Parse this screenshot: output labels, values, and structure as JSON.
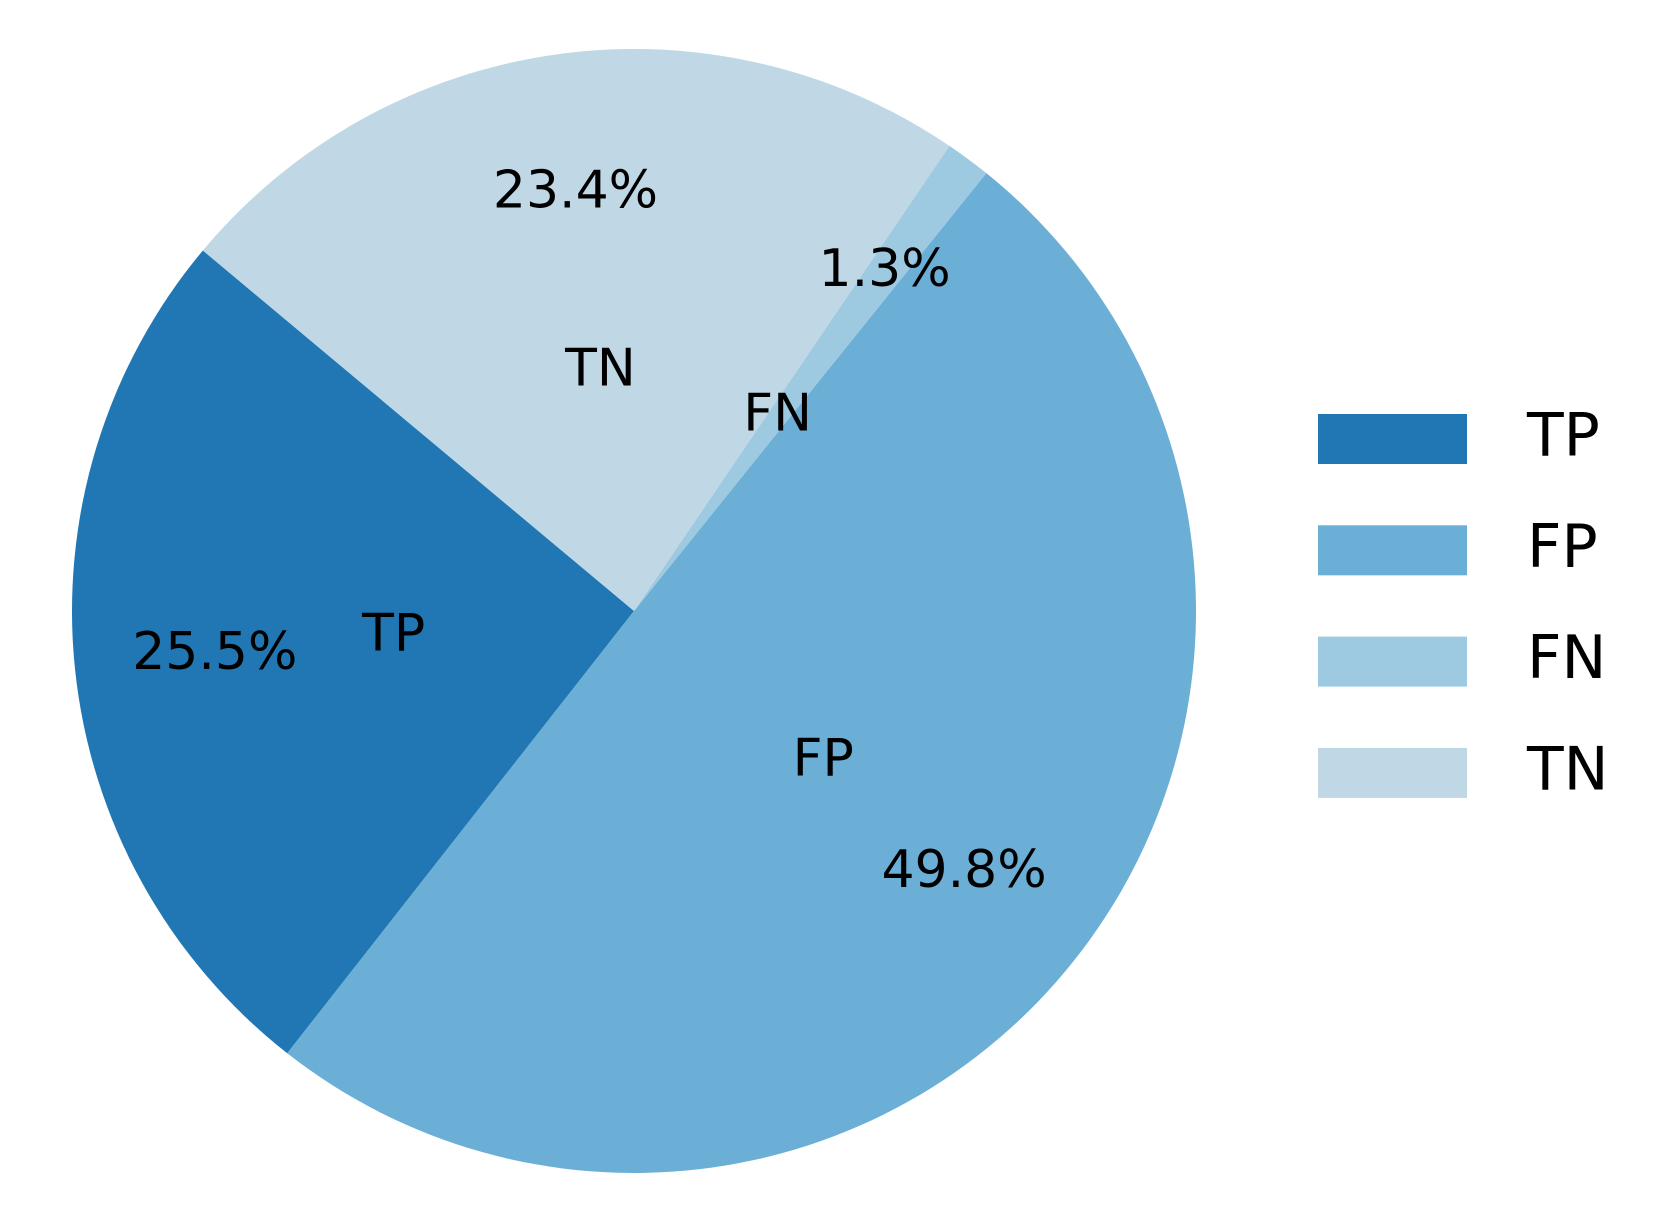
{
  "chart_data": {
    "type": "pie",
    "categories": [
      "TP",
      "FP",
      "FN",
      "TN"
    ],
    "values": [
      25.5,
      49.8,
      1.3,
      23.4
    ],
    "value_labels": [
      "25.5%",
      "49.8%",
      "1.3%",
      "23.4%"
    ],
    "colors": [
      "#2077b4",
      "#6baed6",
      "#9ecae1",
      "#c0d7e6"
    ],
    "legend": "right"
  }
}
